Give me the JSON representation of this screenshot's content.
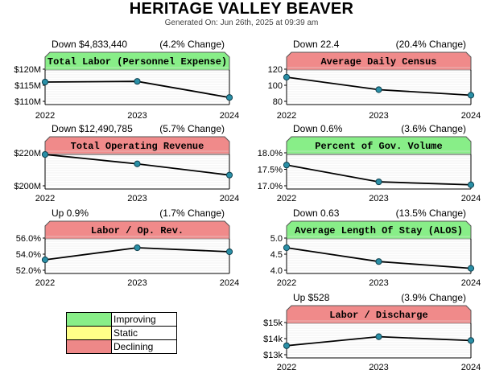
{
  "title": "HERITAGE VALLEY BEAVER",
  "generated": "Generated On: Jun 26th, 2025 at 09:39 am",
  "colors": {
    "improving": "#88ee88",
    "static": "#ffff88",
    "declining": "#ee8888",
    "header_improving": "#88ee88",
    "header_declining": "#f08a8a"
  },
  "legend": [
    {
      "label": "Improving",
      "color": "#88ee88"
    },
    {
      "label": "Static",
      "color": "#ffff88"
    },
    {
      "label": "Declining",
      "color": "#ee8888"
    }
  ],
  "chart_data": [
    {
      "type": "line",
      "title": "Total Labor (Personnel Expense)",
      "status": "improving",
      "summary_left": "Down $4,833,440",
      "summary_right": "(4.2% Change)",
      "x": [
        "2022",
        "2023",
        "2024"
      ],
      "values": [
        116000000,
        116200000,
        111200000
      ],
      "yticks": [
        "$120M",
        "$115M",
        "$110M"
      ],
      "ylim": [
        110000000,
        120000000
      ],
      "grid": true
    },
    {
      "type": "line",
      "title": "Average Daily Census",
      "status": "declining",
      "summary_left": "Down 22.4",
      "summary_right": "(20.4% Change)",
      "x": [
        "2022",
        "2023",
        "2024"
      ],
      "values": [
        110,
        94.5,
        87.6
      ],
      "yticks": [
        "120",
        "100",
        "80"
      ],
      "ylim": [
        80,
        120
      ],
      "grid": true
    },
    {
      "type": "line",
      "title": "Total Operating Revenue",
      "status": "declining",
      "summary_left": "Down $12,490,785",
      "summary_right": "(5.7% Change)",
      "x": [
        "2022",
        "2023",
        "2024"
      ],
      "values": [
        219000000,
        213300000,
        206500000
      ],
      "yticks": [
        "$220M",
        "$200M"
      ],
      "ylim": [
        200000000,
        220000000
      ],
      "grid": true
    },
    {
      "type": "line",
      "title": "Percent of Gov. Volume",
      "status": "improving",
      "summary_left": "Down 0.6%",
      "summary_right": "(3.6% Change)",
      "x": [
        "2022",
        "2023",
        "2024"
      ],
      "values": [
        17.63,
        17.12,
        17.03
      ],
      "yticks": [
        "18.0%",
        "17.5%",
        "17.0%"
      ],
      "ylim": [
        17.0,
        18.0
      ],
      "grid": true
    },
    {
      "type": "line",
      "title": "Labor / Op. Rev.",
      "status": "declining",
      "summary_left": "Up 0.9%",
      "summary_right": "(1.7% Change)",
      "x": [
        "2022",
        "2023",
        "2024"
      ],
      "values": [
        53.3,
        54.8,
        54.3
      ],
      "yticks": [
        "56.0%",
        "54.0%",
        "52.0%"
      ],
      "ylim": [
        52.0,
        56.0
      ],
      "grid": true
    },
    {
      "type": "line",
      "title": "Average Length Of Stay (ALOS)",
      "status": "improving",
      "summary_left": "Down 0.63",
      "summary_right": "(13.5% Change)",
      "x": [
        "2022",
        "2023",
        "2024"
      ],
      "values": [
        4.7,
        4.27,
        4.06
      ],
      "yticks": [
        "5.0",
        "4.5",
        "4.0"
      ],
      "ylim": [
        4.0,
        5.0
      ],
      "grid": true
    },
    {
      "type": "line",
      "title": "Labor / Discharge",
      "status": "declining",
      "summary_left": "Up $528",
      "summary_right": "(3.9% Change)",
      "x": [
        "2022",
        "2023",
        "2024"
      ],
      "values": [
        13700,
        14400,
        14100
      ],
      "yticks": [
        "$15k",
        "$14k",
        "$13k"
      ],
      "ylim": [
        13000,
        15500
      ],
      "grid": true
    }
  ]
}
